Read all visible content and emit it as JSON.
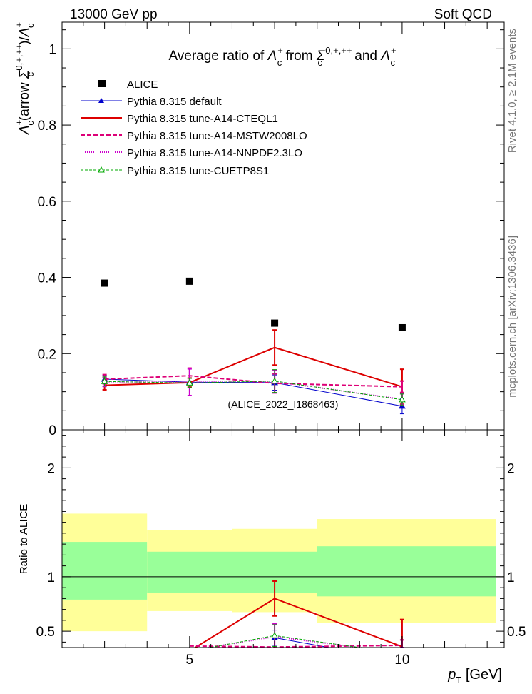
{
  "header": {
    "left": "13000 GeV pp",
    "right": "Soft QCD"
  },
  "side_labels": {
    "rivet": "Rivet 4.1.0, ≥ 2.1M events",
    "mcplots": "mcplots.cern.ch [arXiv:1306.3436]"
  },
  "colors": {
    "alice": "#000000",
    "default": "#0000cc",
    "cteql1": "#dd0000",
    "mstw": "#dd0077",
    "nnpdf": "#cc00cc",
    "cuetp": "#00aa00",
    "band_inner": "#99ff99",
    "band_outer": "#ffff99"
  },
  "chart_data": [
    {
      "type": "line",
      "title": "Average ratio of  Λc+ from Σc0,+,++ and Λc+",
      "title_parts": {
        "a": "Average ratio of ",
        "l1": "Λ",
        "l1sub": "c",
        "l1sup": "+",
        "b": " from ",
        "s": "Σ",
        "ssub": "c",
        "ssup": "0,+,++",
        "c": " and ",
        "l2": "Λ",
        "l2sub": "c",
        "l2sup": "+"
      },
      "ylabel": "Λc+(arrow Σc0,+,++)/Λc+",
      "ylabel_parts": {
        "l": "Λ",
        "lsub": "c",
        "lsup": "+",
        "a": "(arrow ",
        "s": "Σ",
        "ssub": "c",
        "ssup": "0,+,++",
        "b": ")/",
        "l2": "Λ",
        "l2sub": "c",
        "l2sup": "+"
      },
      "xlim": [
        2,
        12.4
      ],
      "ylim": [
        0,
        1.07
      ],
      "yticks": [
        0,
        0.2,
        0.4,
        0.6,
        0.8,
        1
      ],
      "ytick_labels": [
        "0",
        "0.2",
        "0.4",
        "0.6",
        "0.8",
        "1"
      ],
      "watermark": "(ALICE_2022_I1868463)",
      "alice": {
        "name": "ALICE",
        "x": [
          3,
          5,
          7,
          10
        ],
        "y": [
          0.385,
          0.39,
          0.28,
          0.268
        ]
      },
      "series": [
        {
          "name": "Pythia 8.315 default",
          "key": "default",
          "x": [
            3,
            5,
            7,
            10
          ],
          "y": [
            0.133,
            0.125,
            0.124,
            0.062
          ],
          "err": [
            0.01,
            0.01,
            0.02,
            0.02
          ],
          "marker": "triangle-filled",
          "dash": ""
        },
        {
          "name": "Pythia 8.315 tune-A14-CTEQL1",
          "key": "cteql1",
          "x": [
            3,
            5,
            7,
            10
          ],
          "y": [
            0.117,
            0.124,
            0.216,
            0.113
          ],
          "err": [
            0.012,
            0.012,
            0.046,
            0.046
          ],
          "marker": "none",
          "dash": ""
        },
        {
          "name": "Pythia 8.315 tune-A14-MSTW2008LO",
          "key": "mstw",
          "x": [
            3,
            5,
            7,
            10
          ],
          "y": [
            0.133,
            0.142,
            0.122,
            0.113
          ],
          "err": [
            0.012,
            0.02,
            0.025,
            0.015
          ],
          "marker": "none",
          "dash": "6,3"
        },
        {
          "name": "Pythia 8.315 tune-A14-NNPDF2.3LO",
          "key": "nnpdf",
          "x": [
            3,
            5,
            7,
            10
          ],
          "y": [
            0.126,
            0.125,
            0.127,
            0.08
          ],
          "err": [
            0.012,
            0.035,
            0.03,
            0.015
          ],
          "marker": "none",
          "dash": "1,2"
        },
        {
          "name": "Pythia 8.315 tune-CUETP8S1",
          "key": "cuetp",
          "x": [
            3,
            5,
            7,
            10
          ],
          "y": [
            0.127,
            0.123,
            0.128,
            0.079
          ],
          "err": [
            0.012,
            0.012,
            0.03,
            0.015
          ],
          "marker": "triangle-open",
          "dash": "4,2"
        }
      ]
    },
    {
      "type": "line",
      "ylabel": "Ratio to ALICE",
      "xlabel": "pT [GeV]",
      "xlabel_parts": {
        "p": "p",
        "sub": "T",
        "unit": " [GeV]"
      },
      "xlim": [
        2,
        12.4
      ],
      "ylim": [
        0.35,
        2.35
      ],
      "yticks": [
        0.5,
        1,
        2
      ],
      "ytick_labels": [
        "0.5",
        "1",
        "2"
      ],
      "xticks": [
        5,
        10
      ],
      "xtick_labels": [
        "5",
        "10"
      ],
      "bands": [
        {
          "x0": 2,
          "x1": 4,
          "inner": [
            0.79,
            1.32
          ],
          "outer": [
            0.5,
            1.58
          ]
        },
        {
          "x0": 4,
          "x1": 6,
          "inner": [
            0.855,
            1.23
          ],
          "outer": [
            0.685,
            1.43
          ]
        },
        {
          "x0": 6,
          "x1": 8,
          "inner": [
            0.85,
            1.23
          ],
          "outer": [
            0.675,
            1.44
          ]
        },
        {
          "x0": 8,
          "x1": 12.2,
          "inner": [
            0.82,
            1.28
          ],
          "outer": [
            0.575,
            1.53
          ]
        }
      ],
      "series": [
        {
          "key": "default",
          "x": [
            7,
            10
          ],
          "y": [
            0.44,
            0.23
          ],
          "err": [
            0.07,
            0.06
          ],
          "marker": "triangle-filled",
          "dash": ""
        },
        {
          "key": "cteql1",
          "x": [
            5,
            7,
            10
          ],
          "y": [
            0.318,
            0.8,
            0.358
          ],
          "err": [
            0,
            0.16,
            0.25
          ],
          "marker": "none",
          "dash": ""
        },
        {
          "key": "mstw",
          "x": [
            5,
            7,
            10
          ],
          "y": [
            0.364,
            0.355,
            0.37
          ],
          "err": [
            0,
            0.09,
            0.05
          ],
          "marker": "none",
          "dash": "6,3"
        },
        {
          "key": "nnpdf",
          "x": [
            5,
            7,
            10
          ],
          "y": [
            0.32,
            0.45,
            0.3
          ],
          "err": [
            0,
            0.12,
            0.05
          ],
          "marker": "none",
          "dash": "1,2"
        },
        {
          "key": "cuetp",
          "x": [
            5,
            7,
            10
          ],
          "y": [
            0.315,
            0.46,
            0.295
          ],
          "err": [
            0,
            0.1,
            0.05
          ],
          "marker": "triangle-open",
          "dash": "4,2"
        }
      ]
    }
  ]
}
